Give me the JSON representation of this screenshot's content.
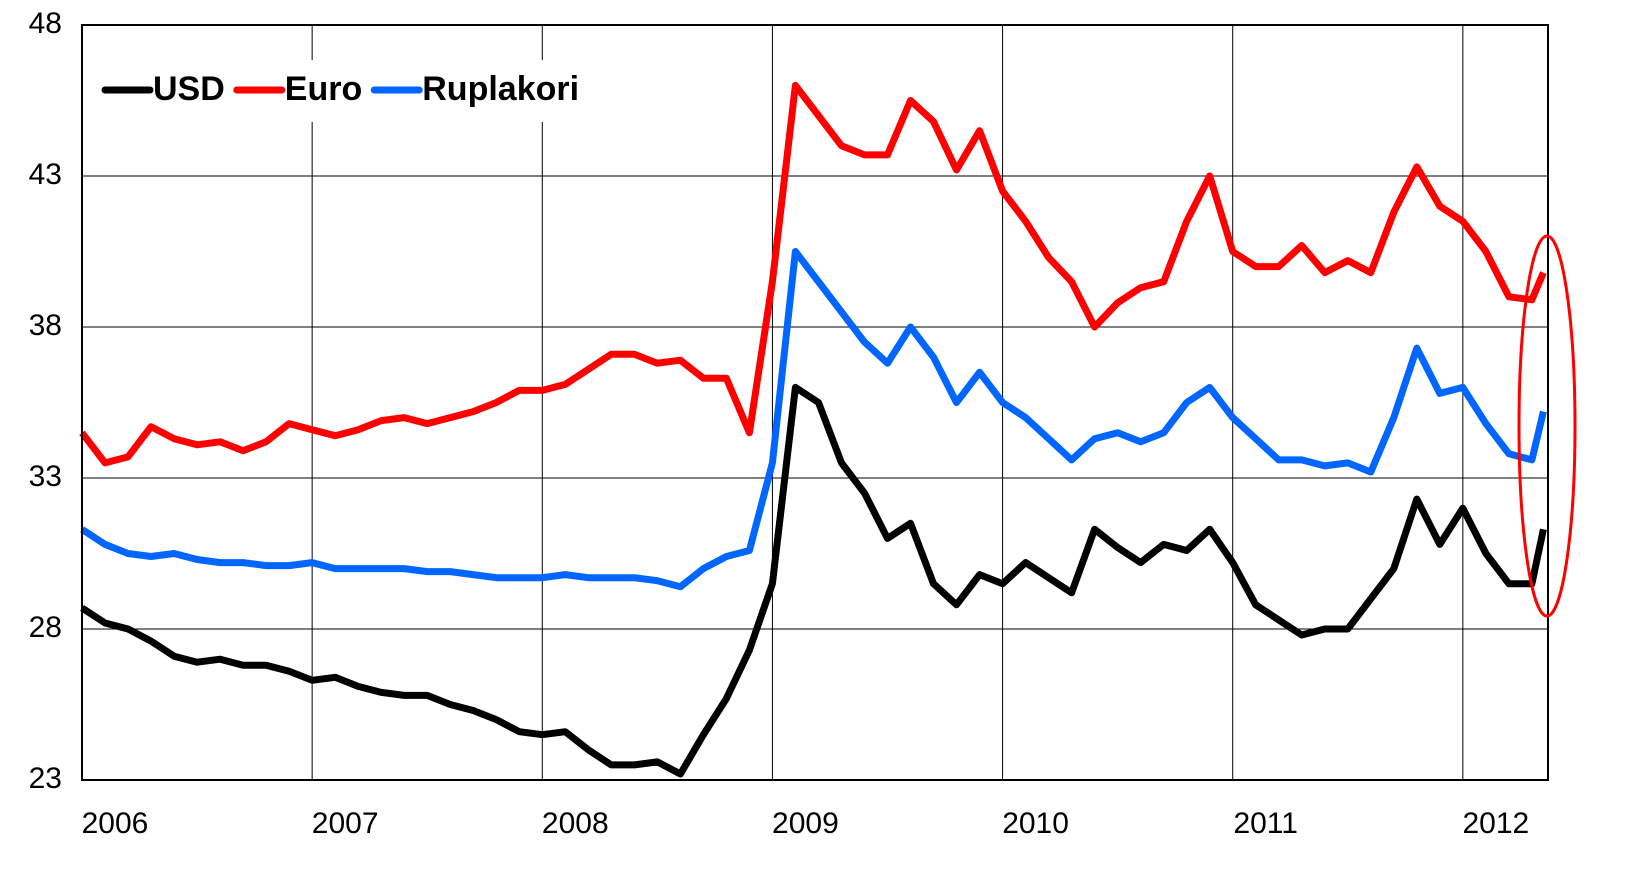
{
  "chart_data": {
    "type": "line",
    "x": [
      2006.0,
      2006.1,
      2006.2,
      2006.3,
      2006.4,
      2006.5,
      2006.6,
      2006.7,
      2006.8,
      2006.9,
      2007.0,
      2007.1,
      2007.2,
      2007.3,
      2007.4,
      2007.5,
      2007.6,
      2007.7,
      2007.8,
      2007.9,
      2008.0,
      2008.1,
      2008.2,
      2008.3,
      2008.4,
      2008.5,
      2008.6,
      2008.7,
      2008.8,
      2008.9,
      2009.0,
      2009.1,
      2009.2,
      2009.3,
      2009.4,
      2009.5,
      2009.6,
      2009.7,
      2009.8,
      2009.9,
      2010.0,
      2010.1,
      2010.2,
      2010.3,
      2010.4,
      2010.5,
      2010.6,
      2010.7,
      2010.8,
      2010.9,
      2011.0,
      2011.1,
      2011.2,
      2011.3,
      2011.4,
      2011.5,
      2011.6,
      2011.7,
      2011.8,
      2011.9,
      2012.0,
      2012.1,
      2012.2,
      2012.3,
      2012.35
    ],
    "series": [
      {
        "name": "USD",
        "color": "#000000",
        "values": [
          28.7,
          28.2,
          28.0,
          27.6,
          27.1,
          26.9,
          27.0,
          26.8,
          26.8,
          26.6,
          26.3,
          26.4,
          26.1,
          25.9,
          25.8,
          25.8,
          25.5,
          25.3,
          25.0,
          24.6,
          24.5,
          24.6,
          24.0,
          23.5,
          23.5,
          23.6,
          23.2,
          24.5,
          25.7,
          27.3,
          29.5,
          36.0,
          35.5,
          33.5,
          32.5,
          31.0,
          31.5,
          29.5,
          28.8,
          29.8,
          29.5,
          30.2,
          29.7,
          29.2,
          31.3,
          30.7,
          30.2,
          30.8,
          30.6,
          31.3,
          30.2,
          28.8,
          28.3,
          27.8,
          28.0,
          28.0,
          29.0,
          30.0,
          32.3,
          30.8,
          32.0,
          30.5,
          29.5,
          29.5,
          31.3
        ]
      },
      {
        "name": "Euro",
        "color": "#ff0000",
        "values": [
          34.5,
          33.5,
          33.7,
          34.7,
          34.3,
          34.1,
          34.2,
          33.9,
          34.2,
          34.8,
          34.6,
          34.4,
          34.6,
          34.9,
          35.0,
          34.8,
          35.0,
          35.2,
          35.5,
          35.9,
          35.9,
          36.1,
          36.6,
          37.1,
          37.1,
          36.8,
          36.9,
          36.3,
          36.3,
          34.5,
          39.5,
          46.0,
          45.0,
          44.0,
          43.7,
          43.7,
          45.5,
          44.8,
          43.2,
          44.5,
          42.5,
          41.5,
          40.3,
          39.5,
          38.0,
          38.8,
          39.3,
          39.5,
          41.5,
          43.0,
          40.5,
          40.0,
          40.0,
          40.7,
          39.8,
          40.2,
          39.8,
          41.8,
          43.3,
          42.0,
          41.5,
          40.5,
          39.0,
          38.9,
          39.8
        ]
      },
      {
        "name": "Ruplakori",
        "color": "#0066ff",
        "values": [
          31.3,
          30.8,
          30.5,
          30.4,
          30.5,
          30.3,
          30.2,
          30.2,
          30.1,
          30.1,
          30.2,
          30.0,
          30.0,
          30.0,
          30.0,
          29.9,
          29.9,
          29.8,
          29.7,
          29.7,
          29.7,
          29.8,
          29.7,
          29.7,
          29.7,
          29.6,
          29.4,
          30.0,
          30.4,
          30.6,
          33.5,
          40.5,
          39.5,
          38.5,
          37.5,
          36.8,
          38.0,
          37.0,
          35.5,
          36.5,
          35.5,
          35.0,
          34.3,
          33.6,
          34.3,
          34.5,
          34.2,
          34.5,
          35.5,
          36.0,
          35.0,
          34.3,
          33.6,
          33.6,
          33.4,
          33.5,
          33.2,
          35.0,
          37.3,
          35.8,
          36.0,
          34.8,
          33.8,
          33.6,
          35.2
        ]
      }
    ],
    "xlim": [
      2006,
      2012.37
    ],
    "xticks": [
      2006,
      2007,
      2008,
      2009,
      2010,
      2011,
      2012
    ],
    "ylim": [
      23,
      48
    ],
    "yticks": [
      23,
      28,
      33,
      38,
      43,
      48
    ],
    "grid": true,
    "legend": "upper left"
  }
}
